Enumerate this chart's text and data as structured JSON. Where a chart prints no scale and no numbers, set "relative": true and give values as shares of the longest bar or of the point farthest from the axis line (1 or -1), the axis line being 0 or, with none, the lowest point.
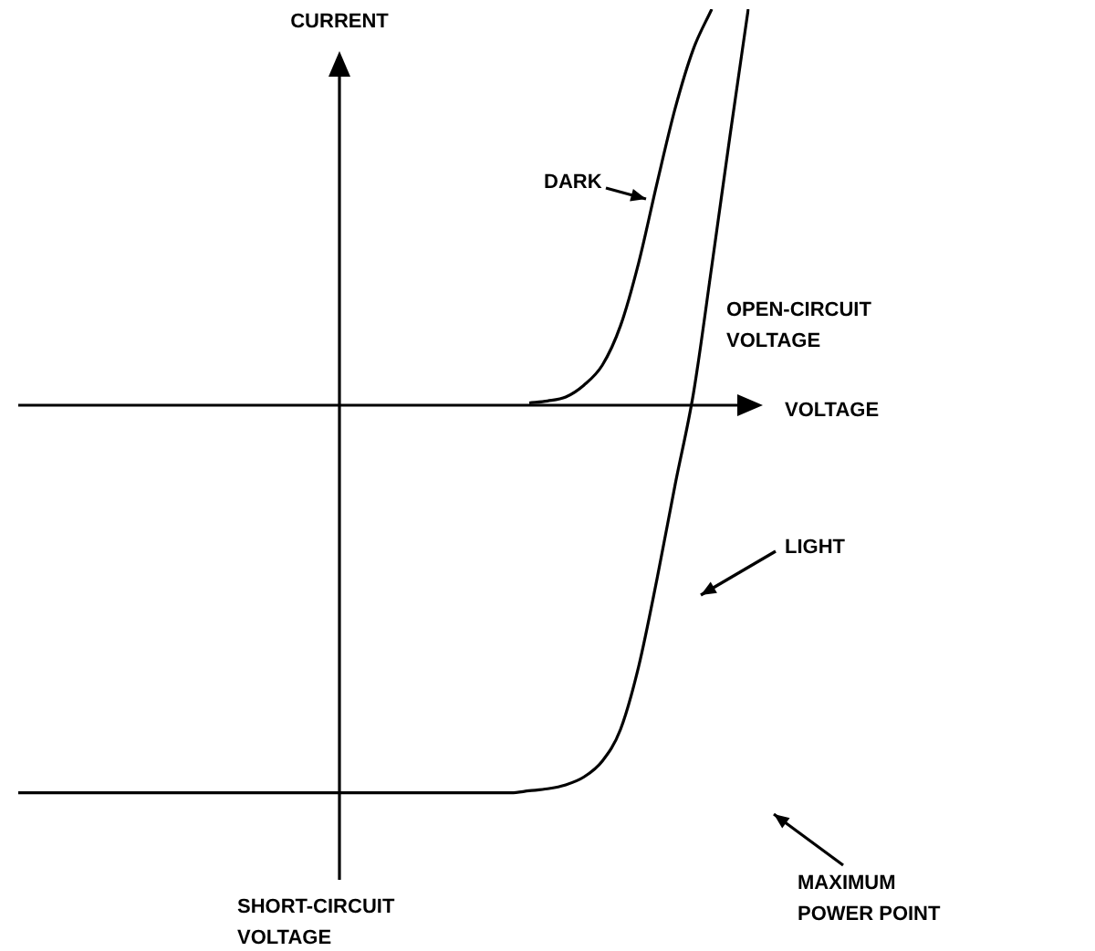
{
  "chart_data": {
    "type": "line",
    "xlabel": "VOLTAGE",
    "ylabel": "CURRENT",
    "relative": true,
    "marker": "none",
    "categories": [
      null,
      null,
      null,
      null,
      null,
      null,
      null,
      null,
      null,
      null,
      null,
      null,
      null,
      null,
      null,
      null,
      null,
      null,
      null,
      null,
      null,
      null,
      null,
      null,
      null,
      null,
      null,
      null,
      null,
      null,
      null,
      null,
      null,
      null,
      null,
      null,
      null,
      null,
      null,
      null,
      null
    ],
    "series": [
      {
        "name": "DARK",
        "color": "#000000",
        "values": [
          null,
          null,
          null,
          null,
          null,
          null,
          null,
          null,
          null,
          null,
          null,
          null,
          null,
          null,
          null,
          null,
          null,
          null,
          null,
          null,
          null,
          null,
          null,
          null,
          null,
          null,
          null,
          null,
          0.005,
          0.01,
          0.02,
          0.05,
          0.1,
          0.2,
          0.36,
          0.56,
          0.75,
          0.9,
          1.0,
          null,
          null
        ]
      },
      {
        "name": "LIGHT",
        "color": "#000000",
        "values": [
          -0.98,
          -0.98,
          -0.98,
          -0.98,
          -0.98,
          -0.98,
          -0.98,
          -0.98,
          -0.98,
          -0.98,
          -0.98,
          -0.98,
          -0.98,
          -0.98,
          -0.98,
          -0.98,
          -0.98,
          -0.98,
          -0.98,
          -0.98,
          -0.98,
          -0.98,
          -0.98,
          -0.98,
          -0.98,
          -0.98,
          -0.98,
          -0.98,
          -0.975,
          -0.97,
          -0.96,
          -0.94,
          -0.9,
          -0.82,
          -0.66,
          -0.44,
          -0.2,
          0.03,
          0.35,
          0.68,
          1.0
        ]
      }
    ],
    "annotations": [
      "OPEN-CIRCUIT VOLTAGE",
      "MAXIMUM POWER POINT",
      "SHORT-CIRCUIT VOLTAGE"
    ]
  }
}
